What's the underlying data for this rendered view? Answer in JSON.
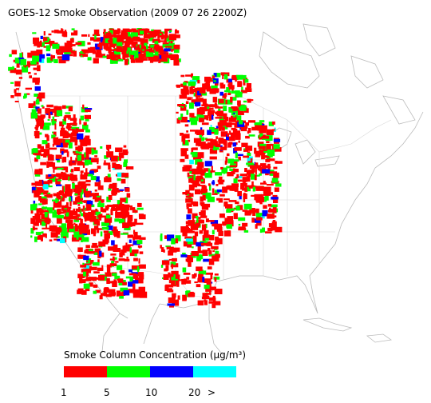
{
  "title": "GOES-12 Smoke Observation (2009 07 26  2200Z)",
  "legend": {
    "title": "Smoke Column Concentration (μg/m³)",
    "colors": [
      "#ff0000",
      "#00ff00",
      "#0000ff",
      "#00ffff"
    ],
    "labels": [
      "1",
      "5",
      "10",
      "20",
      ">"
    ]
  }
}
